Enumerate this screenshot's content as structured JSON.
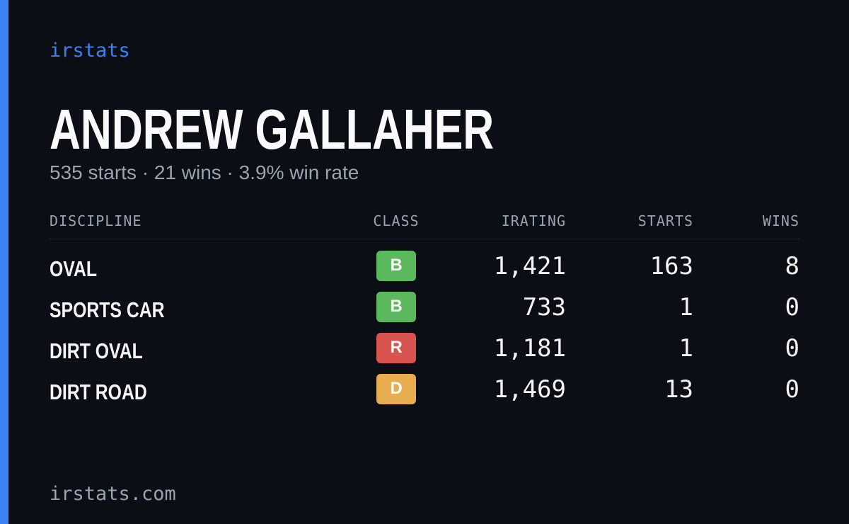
{
  "brand": "irstats",
  "driver": {
    "name": "ANDREW GALLAHER",
    "summary": "535 starts · 21 wins · 3.9% win rate"
  },
  "table": {
    "headers": [
      "DISCIPLINE",
      "CLASS",
      "IRATING",
      "STARTS",
      "WINS"
    ],
    "rows": [
      {
        "discipline": "OVAL",
        "class": "B",
        "class_color": "#5cb85c",
        "irating": "1,421",
        "starts": "163",
        "wins": "8"
      },
      {
        "discipline": "SPORTS CAR",
        "class": "B",
        "class_color": "#5cb85c",
        "irating": "733",
        "starts": "1",
        "wins": "0"
      },
      {
        "discipline": "DIRT OVAL",
        "class": "R",
        "class_color": "#d9534f",
        "irating": "1,181",
        "starts": "1",
        "wins": "0"
      },
      {
        "discipline": "DIRT ROAD",
        "class": "D",
        "class_color": "#e8ad4f",
        "irating": "1,469",
        "starts": "13",
        "wins": "0"
      }
    ]
  },
  "footer": "irstats.com"
}
